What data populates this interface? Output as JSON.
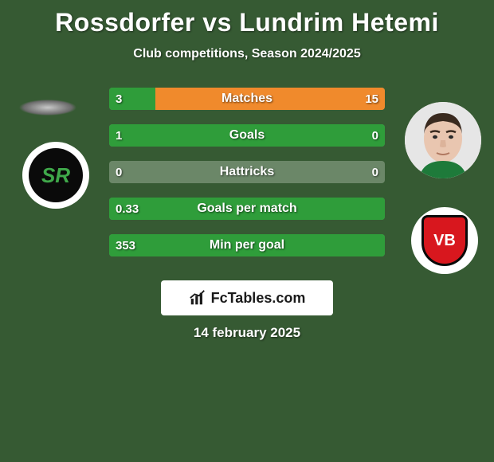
{
  "background_color": "#365a33",
  "text_color": "#ffffff",
  "title": "Rossdorfer vs Lundrim Hetemi",
  "subtitle": "Club competitions, Season 2024/2025",
  "date": "14 february 2025",
  "watermark": "FcTables.com",
  "watermark_bg": "#ffffff",
  "watermark_text_color": "#1a1a1a",
  "bar_bg_color": "#6b8768",
  "bar_left_color": "#2f9d3a",
  "bar_right_color": "#f08a2c",
  "stats": [
    {
      "label": "Matches",
      "left_val": "3",
      "right_val": "15",
      "left_pct": 16.7,
      "right_pct": 83.3
    },
    {
      "label": "Goals",
      "left_val": "1",
      "right_val": "0",
      "left_pct": 100,
      "right_pct": 0
    },
    {
      "label": "Hattricks",
      "left_val": "0",
      "right_val": "0",
      "left_pct": 0,
      "right_pct": 0
    },
    {
      "label": "Goals per match",
      "left_val": "0.33",
      "right_val": "",
      "left_pct": 100,
      "right_pct": 0
    },
    {
      "label": "Min per goal",
      "left_val": "353",
      "right_val": "",
      "left_pct": 100,
      "right_pct": 0
    }
  ],
  "player_left_photo_empty": true,
  "player_right_skin": "#e9c6b0",
  "player_right_hair": "#3a2a1f",
  "club_left_initials": "SR",
  "club_left_green": "#3fa84a",
  "club_right_initials": "VB",
  "club_right_red": "#d8171e"
}
